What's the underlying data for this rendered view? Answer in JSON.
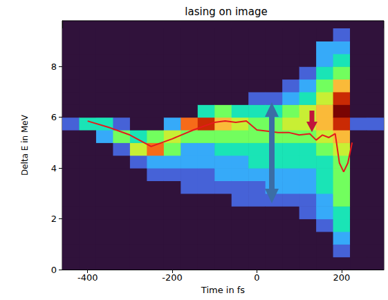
{
  "chart_data": {
    "type": "heatmap",
    "title": "lasing on image",
    "x_label": "Time in fs",
    "y_label": "Delta E in MeV",
    "xlim": [
      -460,
      300
    ],
    "ylim": [
      0,
      9.8
    ],
    "xticks": [
      -400,
      -200,
      0,
      200
    ],
    "yticks": [
      0,
      2,
      4,
      6,
      8
    ],
    "x_bins": [
      -460,
      -420,
      -380,
      -340,
      -300,
      -260,
      -220,
      -180,
      -140,
      -100,
      -60,
      -20,
      20,
      60,
      100,
      140,
      180,
      220,
      260,
      300
    ],
    "y_bins": [
      0,
      0.5,
      1,
      1.5,
      2,
      2.5,
      3,
      3.5,
      4,
      4.5,
      5,
      5.5,
      6,
      6.5,
      7,
      7.5,
      8,
      8.5,
      9,
      9.5
    ],
    "intensity": [
      [
        0,
        0,
        0,
        0,
        0,
        0,
        0,
        0,
        0,
        0,
        0,
        1,
        0,
        0,
        0,
        0,
        0,
        0,
        0
      ],
      [
        0,
        0,
        0,
        0,
        0,
        0,
        0,
        0,
        0,
        0,
        0,
        3,
        0,
        0,
        0,
        0,
        0,
        0,
        0
      ],
      [
        0,
        0,
        0,
        0,
        0,
        0,
        0,
        0,
        0,
        0,
        2,
        3,
        0,
        0,
        0,
        0,
        0,
        0,
        0
      ],
      [
        0,
        0,
        0,
        0,
        0,
        0,
        0,
        0,
        0,
        1,
        4,
        1,
        0,
        0,
        0,
        0,
        0,
        0,
        0
      ],
      [
        0,
        0,
        0,
        0,
        0,
        0,
        0,
        0,
        1,
        5,
        3,
        0,
        0,
        0,
        0,
        0,
        0,
        0,
        0
      ],
      [
        0,
        0,
        0,
        0,
        0,
        0,
        0,
        1,
        2,
        7,
        4,
        0,
        0,
        0,
        0,
        0,
        0,
        0,
        0
      ],
      [
        0,
        0,
        0,
        0,
        0,
        0,
        0,
        1,
        2,
        4,
        5,
        2,
        0,
        0,
        0,
        0,
        0,
        0,
        0
      ],
      [
        0,
        0,
        0,
        0,
        0,
        0,
        1,
        1,
        2,
        2,
        4,
        7,
        0,
        0,
        0,
        0,
        0,
        0,
        0
      ],
      [
        0,
        0,
        0,
        0,
        0,
        0,
        1,
        1,
        2,
        2,
        4,
        8,
        3,
        0,
        0,
        0,
        0,
        0,
        0
      ],
      [
        0,
        0,
        0,
        0,
        0,
        0,
        1,
        2,
        2,
        3,
        4,
        6,
        4,
        0,
        0,
        0,
        0,
        0,
        0
      ],
      [
        0,
        0,
        0,
        0,
        0,
        1,
        1,
        2,
        2,
        3,
        4,
        5,
        3,
        0,
        0,
        0,
        0,
        0,
        0
      ],
      [
        0,
        0,
        0,
        0,
        0,
        1,
        1,
        2,
        3,
        3,
        4,
        4,
        3,
        1,
        0,
        0,
        0,
        0,
        0
      ],
      [
        0,
        0,
        0,
        0,
        0,
        1,
        2,
        2,
        3,
        3,
        4,
        4,
        3,
        1,
        0,
        0,
        0,
        0,
        0
      ],
      [
        0,
        0,
        0,
        0,
        0,
        1,
        2,
        2,
        3,
        3,
        4,
        5,
        4,
        2,
        1,
        0,
        0,
        0,
        0
      ],
      [
        0,
        0,
        0,
        0,
        1,
        1,
        2,
        2,
        3,
        3,
        4,
        5,
        5,
        3,
        2,
        1,
        0,
        0,
        0
      ],
      [
        0,
        0,
        0,
        1,
        2,
        2,
        3,
        3,
        3,
        4,
        5,
        6,
        6,
        5,
        4,
        3,
        2,
        2,
        0
      ],
      [
        0,
        1,
        2,
        3,
        3,
        4,
        4,
        4,
        4,
        5,
        6,
        8,
        9,
        8,
        6,
        4,
        3,
        2,
        1
      ],
      [
        0,
        0,
        0,
        0,
        0,
        0,
        0,
        0,
        0,
        0,
        0,
        1,
        0,
        0,
        0,
        0,
        0,
        0,
        0
      ],
      [
        0,
        0,
        0,
        0,
        0,
        0,
        0,
        0,
        0,
        0,
        0,
        1,
        0,
        0,
        0,
        0,
        0,
        0,
        0
      ]
    ],
    "zlim": [
      0,
      9
    ],
    "series": [
      {
        "type": "line",
        "color": "#e41a1c",
        "x": [
          -400,
          -350,
          -300,
          -250,
          -200,
          -150,
          -100,
          -75,
          -50,
          -25,
          0,
          25,
          50,
          75,
          100,
          125,
          140,
          155,
          170,
          185,
          195,
          205,
          215,
          225
        ],
        "values": [
          5.85,
          5.6,
          5.3,
          4.85,
          5.15,
          5.5,
          5.8,
          5.85,
          5.8,
          5.85,
          5.5,
          5.45,
          5.4,
          5.4,
          5.3,
          5.35,
          5.1,
          5.3,
          5.2,
          5.35,
          4.2,
          3.85,
          4.2,
          5.0
        ]
      }
    ]
  }
}
